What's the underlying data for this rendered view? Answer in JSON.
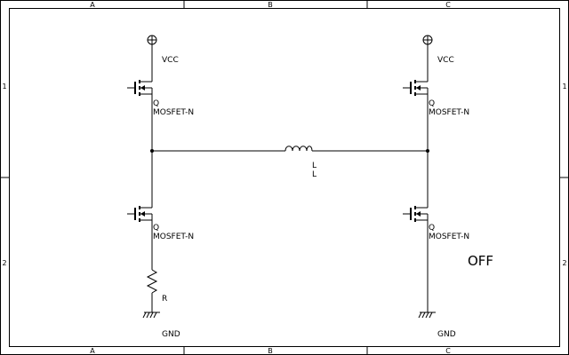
{
  "frame": {
    "columns": [
      "A",
      "B",
      "C"
    ],
    "rows": [
      "1",
      "2"
    ]
  },
  "components": {
    "vcc_left": "VCC",
    "vcc_right": "VCC",
    "q1_ref": "Q",
    "q1_value": "MOSFET-N",
    "q2_ref": "Q",
    "q2_value": "MOSFET-N",
    "q3_ref": "Q",
    "q3_value": "MOSFET-N",
    "q4_ref": "Q",
    "q4_value": "MOSFET-N",
    "inductor_ref": "L",
    "inductor_value": "L",
    "resistor_ref": "R",
    "gnd_left": "GND",
    "gnd_right": "GND"
  },
  "status": "OFF"
}
